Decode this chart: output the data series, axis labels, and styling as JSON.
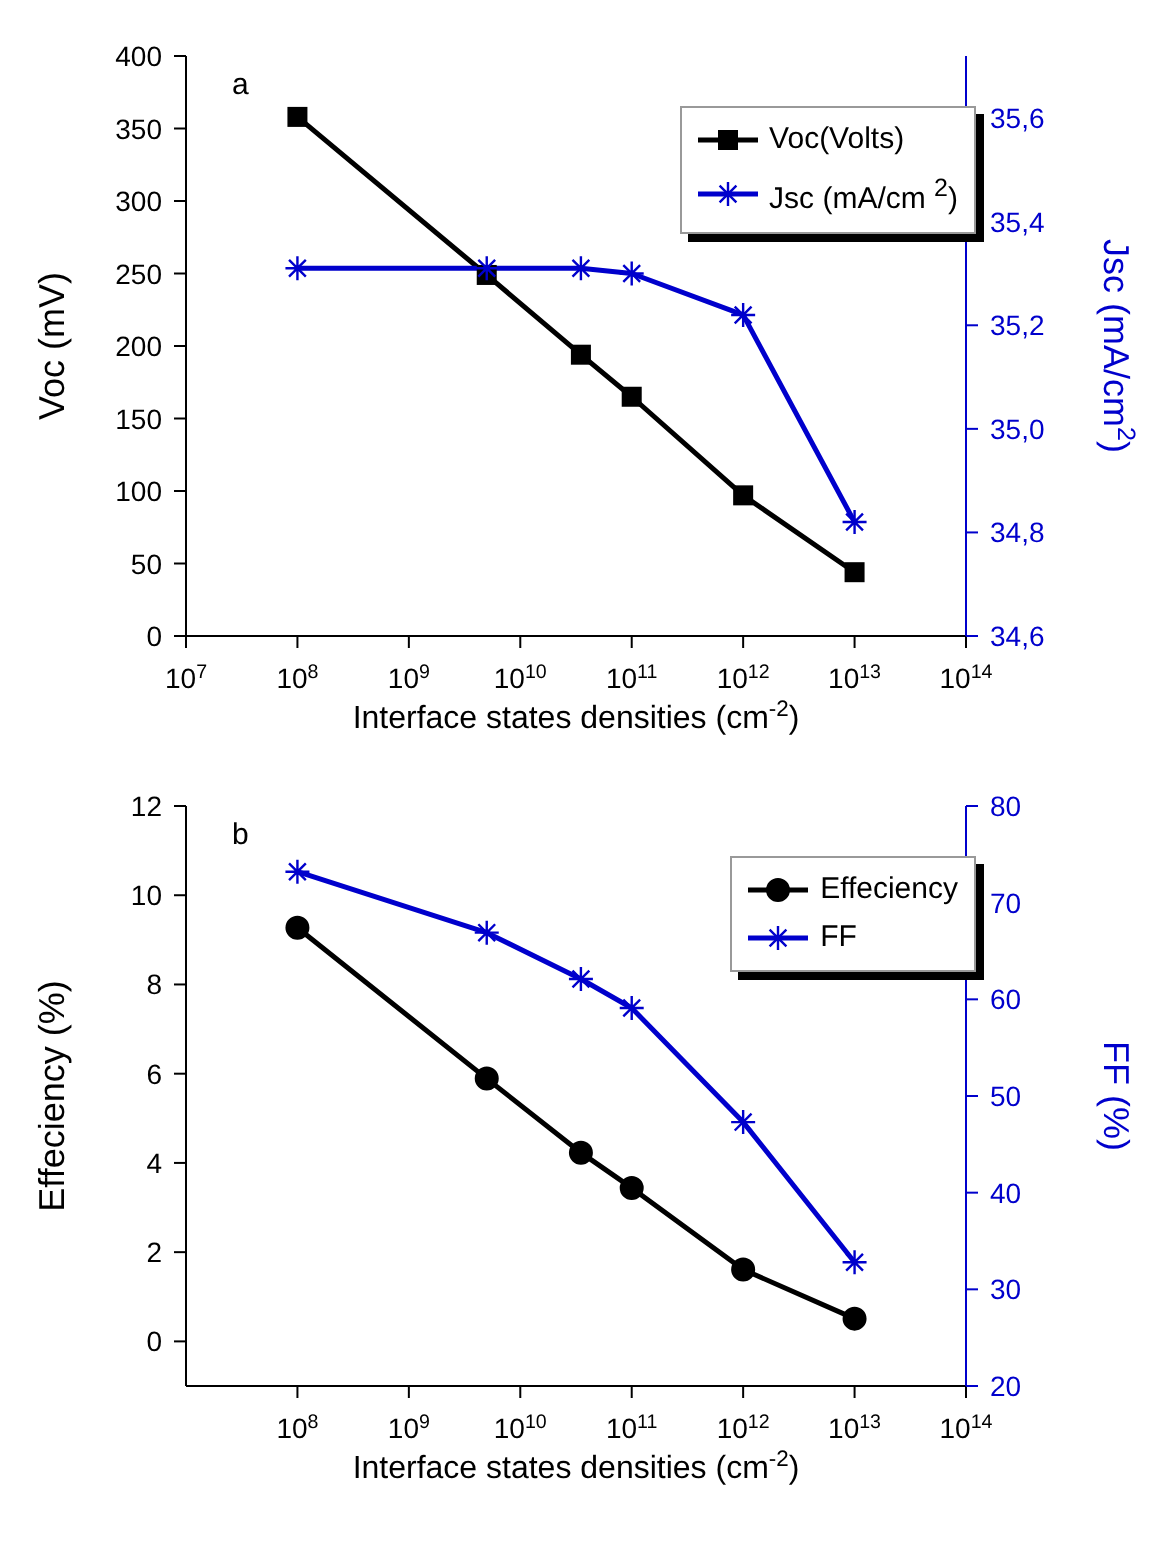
{
  "chart_data": [
    {
      "type": "line",
      "annotations": [
        "a"
      ],
      "xlabel": "Interface states densities (cm$^{-2}$)",
      "ylabel": "Voc (mV)",
      "y2label": "Jsc (mA/cm$^{2}$)",
      "x": [
        100000000.0,
        5000000000.0,
        35000000000.0,
        100000000000.0,
        1000000000000.0,
        10000000000000.0
      ],
      "log": "x",
      "xlim": [
        10000000.0,
        100000000000000.0
      ],
      "xticks": [
        {
          "value": 10000000.0,
          "label": "10$^{7}$"
        },
        {
          "value": 100000000.0,
          "label": "10$^{8}$"
        },
        {
          "value": 1000000000.0,
          "label": "10$^{9}$"
        },
        {
          "value": 10000000000.0,
          "label": "10$^{10}$"
        },
        {
          "value": 100000000000.0,
          "label": "10$^{11}$"
        },
        {
          "value": 1000000000000.0,
          "label": "10$^{12}$"
        },
        {
          "value": 10000000000000.0,
          "label": "10$^{13}$"
        },
        {
          "value": 100000000000000.0,
          "label": "10$^{14}$"
        }
      ],
      "ylim": [
        0,
        400
      ],
      "yticks": [
        0,
        50,
        100,
        150,
        200,
        250,
        300,
        350,
        400
      ],
      "y2lim": [
        34.6,
        35.72
      ],
      "y2ticks": [
        {
          "value": 34.6,
          "label": "34,6"
        },
        {
          "value": 34.8,
          "label": "34,8"
        },
        {
          "value": 35.0,
          "label": "35,0"
        },
        {
          "value": 35.2,
          "label": "35,2"
        },
        {
          "value": 35.4,
          "label": "35,4"
        },
        {
          "value": 35.6,
          "label": "35,6"
        }
      ],
      "legend": "top right",
      "grid": false,
      "series": [
        {
          "name": "Voc(Volts)",
          "color": "#000000",
          "marker": "square",
          "values": [
            358,
            249,
            194,
            165,
            97,
            44
          ]
        },
        {
          "name": "Jsc (mA/cm $^{2}$)",
          "color": "#0000cc",
          "marker": "cross",
          "axis": "y2",
          "values": [
            35.31,
            35.31,
            35.31,
            35.3,
            35.22,
            34.82
          ]
        }
      ]
    },
    {
      "type": "line",
      "annotations": [
        "b"
      ],
      "xlabel": "Interface states densities (cm$^{-2}$)",
      "ylabel": "Effeciency (%)",
      "y2label": "FF (%)",
      "x": [
        100000000.0,
        5000000000.0,
        35000000000.0,
        100000000000.0,
        1000000000000.0,
        10000000000000.0
      ],
      "log": "x",
      "xlim": [
        10000000.0,
        100000000000000.0
      ],
      "xticks": [
        {
          "value": 100000000.0,
          "label": "10$^{8}$"
        },
        {
          "value": 1000000000.0,
          "label": "10$^{9}$"
        },
        {
          "value": 10000000000.0,
          "label": "10$^{10}$"
        },
        {
          "value": 100000000000.0,
          "label": "10$^{11}$"
        },
        {
          "value": 1000000000000.0,
          "label": "10$^{12}$"
        },
        {
          "value": 10000000000000.0,
          "label": "10$^{13}$"
        },
        {
          "value": 100000000000000.0,
          "label": "10$^{14}$"
        }
      ],
      "ylim": [
        -1,
        12
      ],
      "yticks": [
        0,
        2,
        4,
        6,
        8,
        10,
        12
      ],
      "y2lim": [
        20,
        80
      ],
      "y2ticks": [
        20,
        30,
        40,
        50,
        60,
        70,
        80
      ],
      "legend": "top right",
      "grid": false,
      "series": [
        {
          "name": "Effeciency",
          "color": "#000000",
          "marker": "circle",
          "values": [
            9.27,
            5.89,
            4.23,
            3.44,
            1.61,
            0.51
          ]
        },
        {
          "name": "FF",
          "color": "#0000cc",
          "marker": "cross",
          "axis": "y2",
          "values": [
            73.2,
            66.9,
            62.1,
            59.1,
            47.3,
            32.8
          ]
        }
      ]
    }
  ]
}
